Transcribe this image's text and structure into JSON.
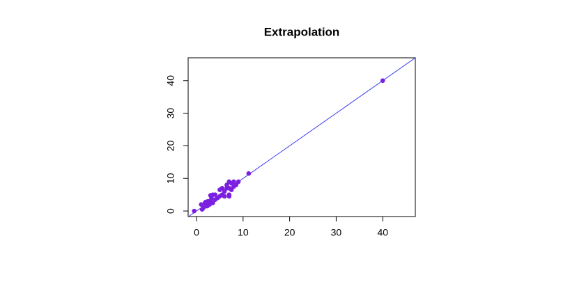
{
  "chart_data": {
    "type": "scatter",
    "title": "Extrapolation",
    "x": [
      -0.5,
      1,
      1.2,
      1.5,
      1.8,
      2,
      2.3,
      2.5,
      2.8,
      3,
      3.2,
      3.5,
      3.5,
      4,
      4,
      4.5,
      5,
      5,
      5.5,
      5.5,
      6,
      6,
      6.5,
      6.5,
      7,
      7,
      7,
      7.5,
      7.5,
      8,
      8,
      8.5,
      9,
      11.2,
      40,
      2,
      3,
      7
    ],
    "series": [
      {
        "color": "#7b1fe0",
        "values": [
          0,
          2,
          0.5,
          1,
          2.5,
          2,
          1.5,
          3,
          2,
          3,
          4,
          2.5,
          5,
          3.5,
          5,
          4,
          6.5,
          4.5,
          5,
          7,
          6,
          4.5,
          7,
          8,
          5,
          9,
          7,
          6.5,
          8.5,
          9,
          7.5,
          8,
          9,
          11.5,
          40,
          2.8,
          4.8,
          4.5
        ]
      }
    ],
    "fit_line": {
      "intercept": 0,
      "slope": 1,
      "color": "#3a3af0"
    },
    "xlim": [
      -1.8,
      47
    ],
    "ylim": [
      -1.7,
      47
    ],
    "xticks": [
      0,
      10,
      20,
      30,
      40
    ],
    "yticks": [
      0,
      10,
      20,
      30,
      40
    ]
  }
}
